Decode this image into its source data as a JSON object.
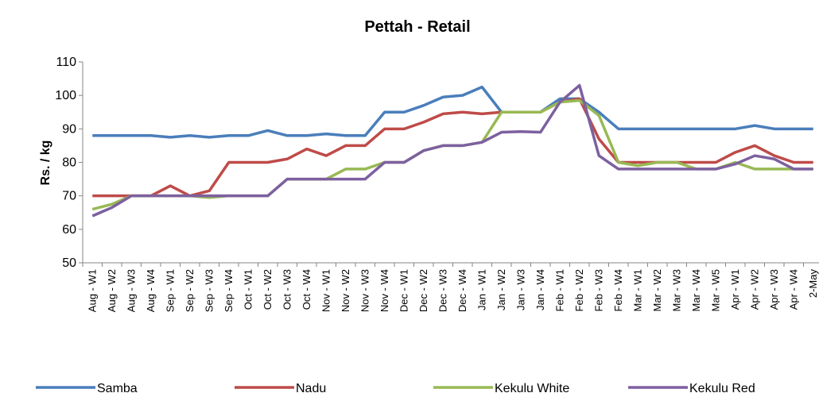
{
  "chart_data": {
    "type": "line",
    "title": "Pettah - Retail",
    "ylabel": "Rs. / kg",
    "categories": [
      "Aug - W1",
      "Aug - W2",
      "Aug - W3",
      "Aug - W4",
      "Sep - W1",
      "Sep - W2",
      "Sep - W3",
      "Sep - W4",
      "Oct - W1",
      "Oct - W2",
      "Oct - W3",
      "Oct - W4",
      "Nov - W1",
      "Nov - W2",
      "Nov - W3",
      "Nov - W4",
      "Dec - W1",
      "Dec - W2",
      "Dec - W3",
      "Dec - W4",
      "Jan - W1",
      "Jan - W2",
      "Jan - W3",
      "Jan - W4",
      "Feb - W1",
      "Feb - W2",
      "Feb - W3",
      "Feb - W4",
      "Mar - W1",
      "Mar - W2",
      "Mar - W3",
      "Mar - W4",
      "Mar - W5",
      "Apr - W1",
      "Apr - W2",
      "Apr - W3",
      "Apr - W4",
      "2-May"
    ],
    "series": [
      {
        "name": "Samba",
        "color": "#4a7ebb",
        "values": [
          88,
          88,
          88,
          88,
          87.5,
          88,
          87.5,
          88,
          88,
          89.5,
          88,
          88,
          88.5,
          88,
          88,
          95,
          95,
          97,
          99.5,
          100,
          102.5,
          95,
          95,
          95,
          99,
          99,
          95,
          90,
          90,
          90,
          90,
          90,
          90,
          90,
          91,
          90,
          90,
          90
        ]
      },
      {
        "name": "Nadu",
        "color": "#be4b48",
        "values": [
          70,
          70,
          70,
          70,
          73,
          70,
          71.5,
          80,
          80,
          80,
          81,
          84,
          82,
          85,
          85,
          90,
          90,
          92,
          94.5,
          95,
          94.5,
          95,
          95,
          95,
          98,
          99,
          87,
          80,
          80,
          80,
          80,
          80,
          80,
          83,
          85,
          82,
          80,
          80
        ]
      },
      {
        "name": "Kekulu White",
        "color": "#98b954",
        "values": [
          66,
          67.5,
          70,
          70,
          70,
          70,
          69.5,
          70,
          70,
          70,
          75,
          75,
          75,
          78,
          78,
          80,
          80,
          83.5,
          85,
          85,
          86,
          95,
          95,
          95,
          98,
          98.5,
          94,
          80,
          79,
          80,
          80,
          78,
          78,
          80,
          78,
          78,
          78,
          78
        ]
      },
      {
        "name": "Kekulu Red",
        "color": "#7d60a0",
        "values": [
          64,
          66.5,
          70,
          70,
          70,
          70,
          70,
          70,
          70,
          70,
          75,
          75,
          75,
          75,
          75,
          80,
          80,
          83.5,
          85,
          85,
          86,
          89,
          89.2,
          89,
          98,
          103,
          82,
          78,
          78,
          78,
          78,
          78,
          78,
          79.5,
          82,
          81,
          78,
          78
        ]
      }
    ],
    "ylim": [
      50,
      110
    ],
    "yticks": [
      50,
      60,
      70,
      80,
      90,
      100,
      110
    ],
    "grid": false,
    "legend": "bottom"
  }
}
